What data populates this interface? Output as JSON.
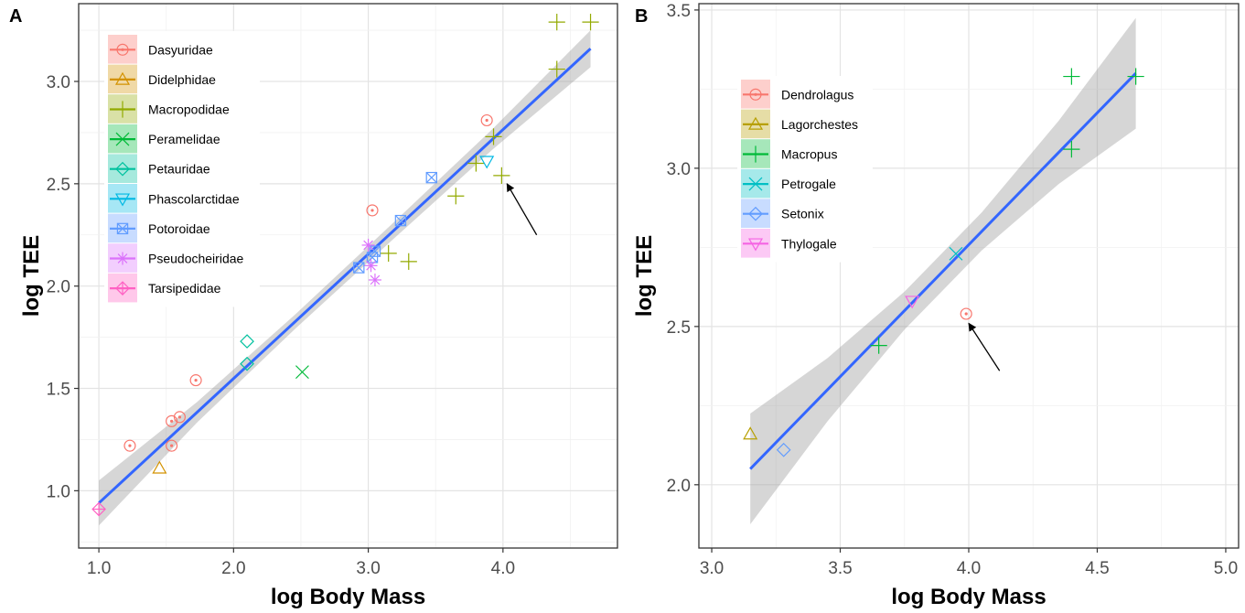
{
  "panels": [
    {
      "letter": "A",
      "chart_data": {
        "type": "scatter",
        "xlabel": "log Body Mass",
        "ylabel": "log TEE",
        "xlim": [
          0.85,
          4.85
        ],
        "ylim": [
          0.72,
          3.38
        ],
        "xticks": [
          1.0,
          2.0,
          3.0,
          4.0
        ],
        "xtick_labels": [
          "1.0",
          "2.0",
          "3.0",
          "4.0"
        ],
        "yticks": [
          1.0,
          1.5,
          2.0,
          2.5,
          3.0
        ],
        "ytick_labels": [
          "1.0",
          "1.5",
          "2.0",
          "2.5",
          "3.0"
        ],
        "grid": true,
        "legend_position": "top-left",
        "fit": {
          "x": [
            1.0,
            4.65
          ],
          "y": [
            0.94,
            3.16
          ],
          "ci_halfwidth": [
            0.11,
            0.05,
            0.035,
            0.04,
            0.05,
            0.09
          ]
        },
        "arrow": {
          "from": [
            4.25,
            2.25
          ],
          "to": [
            4.03,
            2.5
          ]
        },
        "series": [
          {
            "name": "Dasyuridae",
            "color": "#F8766D",
            "marker": "circle-dot",
            "points": [
              [
                1.23,
                1.22
              ],
              [
                1.54,
                1.34
              ],
              [
                1.54,
                1.22
              ],
              [
                1.6,
                1.36
              ],
              [
                1.72,
                1.54
              ],
              [
                3.03,
                2.37
              ],
              [
                3.88,
                2.81
              ]
            ]
          },
          {
            "name": "Didelphidae",
            "color": "#D39200",
            "marker": "triangle",
            "points": [
              [
                1.45,
                1.11
              ]
            ]
          },
          {
            "name": "Macropodidae",
            "color": "#93AA00",
            "marker": "plus",
            "points": [
              [
                3.15,
                2.16
              ],
              [
                3.3,
                2.12
              ],
              [
                3.65,
                2.44
              ],
              [
                3.8,
                2.6
              ],
              [
                3.99,
                2.54
              ],
              [
                3.93,
                2.73
              ],
              [
                4.4,
                3.06
              ],
              [
                4.4,
                3.29
              ],
              [
                4.65,
                3.29
              ]
            ]
          },
          {
            "name": "Peramelidae",
            "color": "#00BA38",
            "marker": "cross",
            "points": [
              [
                2.51,
                1.58
              ]
            ]
          },
          {
            "name": "Petauridae",
            "color": "#00C19F",
            "marker": "diamond",
            "points": [
              [
                2.1,
                1.73
              ],
              [
                2.1,
                1.62
              ]
            ]
          },
          {
            "name": "Phascolarctidae",
            "color": "#00B9E3",
            "marker": "triangle-down",
            "points": [
              [
                3.88,
                2.61
              ]
            ]
          },
          {
            "name": "Potoroidae",
            "color": "#619CFF",
            "marker": "square-x",
            "points": [
              [
                2.93,
                2.09
              ],
              [
                3.03,
                2.14
              ],
              [
                3.05,
                2.17
              ],
              [
                3.24,
                2.32
              ],
              [
                3.47,
                2.53
              ]
            ]
          },
          {
            "name": "Pseudocheiridae",
            "color": "#DB72FB",
            "marker": "asterisk",
            "points": [
              [
                3.0,
                2.2
              ],
              [
                3.05,
                2.03
              ],
              [
                3.02,
                2.1
              ]
            ]
          },
          {
            "name": "Tarsipedidae",
            "color": "#FF61C3",
            "marker": "diamond-plus",
            "points": [
              [
                1.0,
                0.91
              ]
            ]
          }
        ]
      }
    },
    {
      "letter": "B",
      "chart_data": {
        "type": "scatter",
        "xlabel": "log Body Mass",
        "ylabel": "log TEE",
        "xlim": [
          2.95,
          5.05
        ],
        "ylim": [
          1.8,
          3.52
        ],
        "xticks": [
          3.0,
          3.5,
          4.0,
          4.5,
          5.0
        ],
        "xtick_labels": [
          "3.0",
          "3.5",
          "4.0",
          "4.5",
          "5.0"
        ],
        "yticks": [
          2.0,
          2.5,
          3.0,
          3.5
        ],
        "ytick_labels": [
          "2.0",
          "2.5",
          "3.0",
          "3.5"
        ],
        "grid": true,
        "legend_position": "top-left",
        "fit": {
          "x": [
            3.15,
            4.65
          ],
          "y": [
            2.05,
            3.3
          ],
          "ci_halfwidth": [
            0.175,
            0.1,
            0.06,
            0.06,
            0.1,
            0.175
          ]
        },
        "arrow": {
          "from": [
            4.12,
            2.36
          ],
          "to": [
            4.0,
            2.51
          ]
        },
        "series": [
          {
            "name": "Dendrolagus",
            "color": "#F8766D",
            "marker": "circle-dot",
            "points": [
              [
                3.99,
                2.54
              ]
            ]
          },
          {
            "name": "Lagorchestes",
            "color": "#B79F00",
            "marker": "triangle",
            "points": [
              [
                3.15,
                2.16
              ]
            ]
          },
          {
            "name": "Macropus",
            "color": "#00BA38",
            "marker": "plus",
            "points": [
              [
                3.65,
                2.44
              ],
              [
                4.4,
                3.06
              ],
              [
                4.4,
                3.29
              ],
              [
                4.65,
                3.29
              ]
            ]
          },
          {
            "name": "Petrogale",
            "color": "#00BFC4",
            "marker": "cross",
            "points": [
              [
                3.95,
                2.73
              ]
            ]
          },
          {
            "name": "Setonix",
            "color": "#619CFF",
            "marker": "diamond",
            "points": [
              [
                3.28,
                2.11
              ]
            ]
          },
          {
            "name": "Thylogale",
            "color": "#F564E3",
            "marker": "triangle-down",
            "points": [
              [
                3.78,
                2.58
              ]
            ]
          }
        ]
      }
    }
  ]
}
